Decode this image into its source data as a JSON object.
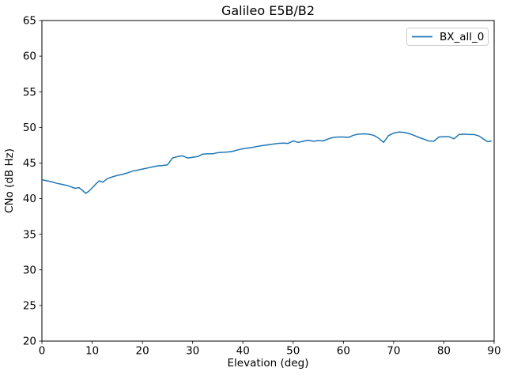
{
  "figure": {
    "background": "#ffffff"
  },
  "colors": {
    "line": "#1f77b4",
    "spine": "#000000",
    "tick": "#000000",
    "text": "#000000",
    "legend_border": "#cccccc",
    "background": "#ffffff"
  },
  "chart_data": {
    "type": "line",
    "title": "Galileo E5B/B2",
    "xlabel": "Elevation (deg)",
    "ylabel": "CNo (dB Hz)",
    "xlim": [
      0,
      90
    ],
    "ylim": [
      20,
      65
    ],
    "xticks": [
      0,
      10,
      20,
      30,
      40,
      50,
      60,
      70,
      80,
      90
    ],
    "yticks": [
      20,
      25,
      30,
      35,
      40,
      45,
      50,
      55,
      60,
      65
    ],
    "grid": false,
    "legend": {
      "position": "upper right",
      "entries": [
        {
          "label": "BX_all_0",
          "color": "#1f77b4"
        }
      ]
    },
    "series": [
      {
        "name": "BX_all_0",
        "color": "#1f77b4",
        "linewidth": 1.5,
        "points": [
          [
            0,
            42.65
          ],
          [
            1,
            42.5
          ],
          [
            2,
            42.35
          ],
          [
            3,
            42.15
          ],
          [
            4,
            42.0
          ],
          [
            5,
            41.85
          ],
          [
            6,
            41.6
          ],
          [
            6.6,
            41.45
          ],
          [
            7.4,
            41.55
          ],
          [
            8,
            41.2
          ],
          [
            8.7,
            40.75
          ],
          [
            9.3,
            41.0
          ],
          [
            10,
            41.5
          ],
          [
            10.8,
            42.1
          ],
          [
            11.4,
            42.5
          ],
          [
            12.1,
            42.3
          ],
          [
            13,
            42.8
          ],
          [
            14,
            43.05
          ],
          [
            15,
            43.25
          ],
          [
            16,
            43.4
          ],
          [
            17,
            43.6
          ],
          [
            18,
            43.85
          ],
          [
            19,
            44.0
          ],
          [
            20,
            44.15
          ],
          [
            21,
            44.3
          ],
          [
            22,
            44.45
          ],
          [
            23,
            44.6
          ],
          [
            24,
            44.65
          ],
          [
            25,
            44.75
          ],
          [
            26,
            45.7
          ],
          [
            27,
            45.9
          ],
          [
            28,
            46.0
          ],
          [
            29,
            45.7
          ],
          [
            30,
            45.8
          ],
          [
            31,
            45.9
          ],
          [
            32,
            46.25
          ],
          [
            33,
            46.3
          ],
          [
            34,
            46.3
          ],
          [
            35,
            46.45
          ],
          [
            36,
            46.5
          ],
          [
            37,
            46.55
          ],
          [
            38,
            46.65
          ],
          [
            39,
            46.85
          ],
          [
            40,
            47.0
          ],
          [
            41,
            47.1
          ],
          [
            42,
            47.2
          ],
          [
            43,
            47.35
          ],
          [
            44,
            47.45
          ],
          [
            45,
            47.55
          ],
          [
            46,
            47.65
          ],
          [
            47,
            47.75
          ],
          [
            48,
            47.8
          ],
          [
            49,
            47.75
          ],
          [
            50,
            48.1
          ],
          [
            51,
            47.9
          ],
          [
            52,
            48.05
          ],
          [
            53,
            48.2
          ],
          [
            54,
            48.05
          ],
          [
            55,
            48.15
          ],
          [
            56,
            48.1
          ],
          [
            57,
            48.4
          ],
          [
            58,
            48.6
          ],
          [
            59,
            48.65
          ],
          [
            60,
            48.65
          ],
          [
            61,
            48.6
          ],
          [
            62,
            48.9
          ],
          [
            63,
            49.05
          ],
          [
            64,
            49.1
          ],
          [
            65,
            49.05
          ],
          [
            66,
            48.9
          ],
          [
            67,
            48.5
          ],
          [
            68,
            47.9
          ],
          [
            69,
            48.85
          ],
          [
            70,
            49.2
          ],
          [
            71,
            49.35
          ],
          [
            72,
            49.3
          ],
          [
            73,
            49.15
          ],
          [
            74,
            48.9
          ],
          [
            75,
            48.6
          ],
          [
            76,
            48.35
          ],
          [
            77,
            48.1
          ],
          [
            78,
            48.05
          ],
          [
            79,
            48.65
          ],
          [
            80,
            48.7
          ],
          [
            81,
            48.7
          ],
          [
            82,
            48.4
          ],
          [
            83,
            49.0
          ],
          [
            84,
            49.05
          ],
          [
            85,
            49.0
          ],
          [
            86,
            49.0
          ],
          [
            87,
            48.8
          ],
          [
            88,
            48.3
          ],
          [
            88.7,
            48.0
          ],
          [
            89.5,
            48.1
          ]
        ]
      }
    ]
  }
}
